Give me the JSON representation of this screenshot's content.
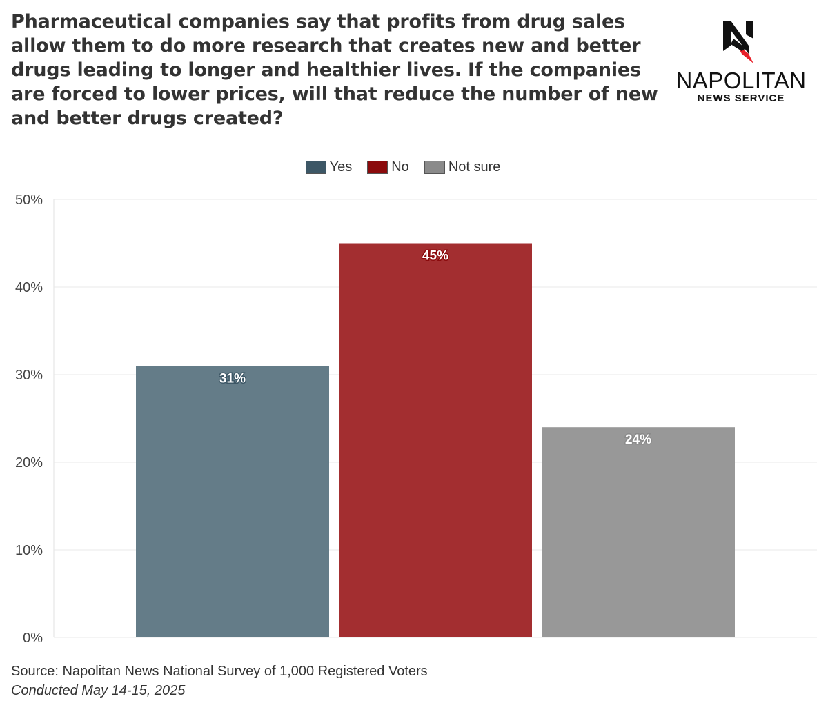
{
  "title": "Pharmaceutical companies say that profits from drug sales allow them to do more research that creates new and better drugs leading to longer and healthier lives. If the companies are forced to lower prices, will that reduce the number of new and better drugs created?",
  "logo": {
    "name": "NAPOLITAN",
    "sub": "NEWS SERVICE",
    "letter": "N"
  },
  "source": "Source: Napolitan News National Survey of 1,000 Registered Voters",
  "conducted": "Conducted May 14-15, 2025",
  "chart_data": {
    "type": "bar",
    "categories": [
      "Yes",
      "No",
      "Not sure"
    ],
    "values": [
      31,
      45,
      24
    ],
    "value_labels": [
      "31%",
      "45%",
      "24%"
    ],
    "colors": [
      "#647c88",
      "#a32e30",
      "#989898"
    ],
    "legend": [
      {
        "label": "Yes",
        "color": "#3d5766"
      },
      {
        "label": "No",
        "color": "#8b0a0c"
      },
      {
        "label": "Not sure",
        "color": "#8a8a8a"
      }
    ],
    "legend_position": "top-center",
    "yticks": [
      "0%",
      "10%",
      "20%",
      "30%",
      "40%",
      "50%"
    ],
    "ylim": [
      0,
      50
    ],
    "grid": true
  }
}
